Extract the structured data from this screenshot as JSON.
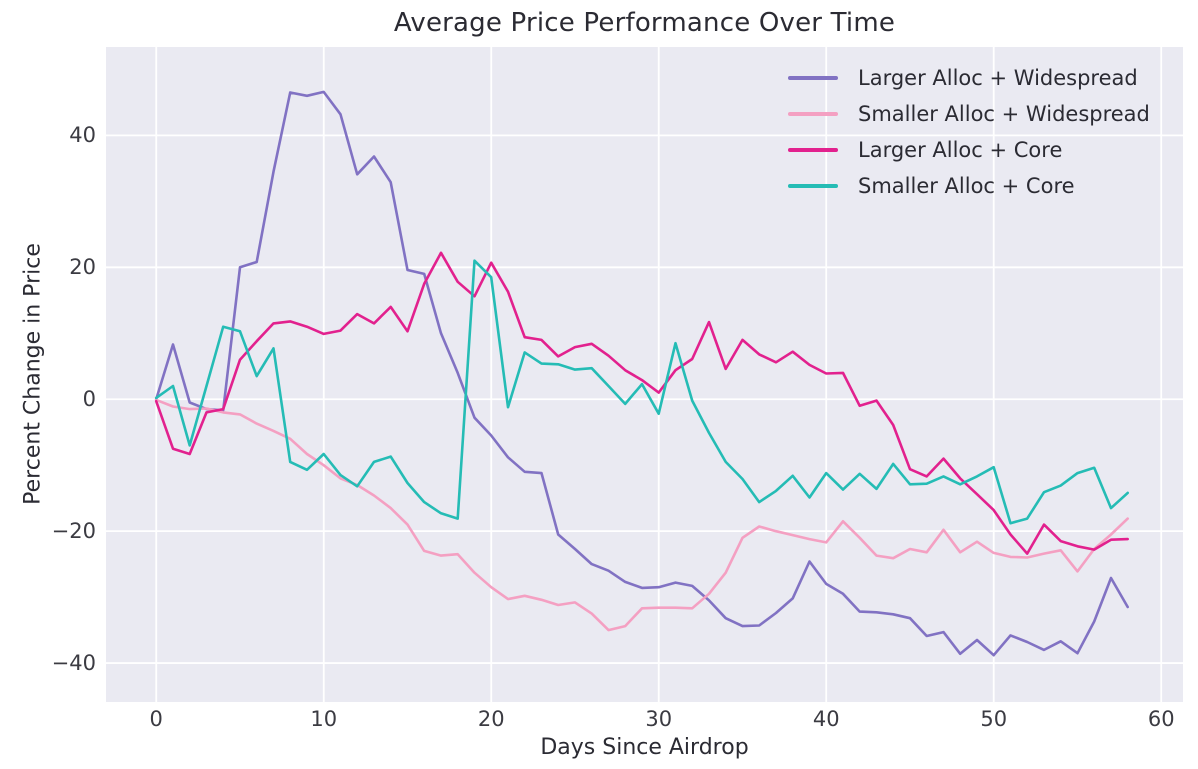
{
  "title": "Average Price Performance Over Time",
  "colors": {
    "figure_bg": "#ffffff",
    "plot_bg": "#eaeaf2",
    "gridline": "#ffffff",
    "text": "#2b2b33",
    "tick_text": "#3b3b42"
  },
  "chart_data": {
    "type": "line",
    "title": "Average Price Performance Over Time",
    "xlabel": "Days Since Airdrop",
    "ylabel": "Percent Change in Price",
    "grid": true,
    "legend_position": "upper right",
    "xlim": [
      -3,
      61.3
    ],
    "ylim": [
      -45.9,
      53.4
    ],
    "x_ticks": [
      0,
      10,
      20,
      30,
      40,
      50,
      60
    ],
    "y_ticks": [
      -40,
      -20,
      0,
      20,
      40
    ],
    "x": [
      0,
      1,
      2,
      3,
      4,
      5,
      6,
      7,
      8,
      9,
      10,
      11,
      12,
      13,
      14,
      15,
      16,
      17,
      18,
      19,
      20,
      21,
      22,
      23,
      24,
      25,
      26,
      27,
      28,
      29,
      30,
      31,
      32,
      33,
      34,
      35,
      36,
      37,
      38,
      39,
      40,
      41,
      42,
      43,
      44,
      45,
      46,
      47,
      48,
      49,
      50,
      51,
      52,
      53,
      54,
      55,
      56,
      57,
      58
    ],
    "series": [
      {
        "name": "Larger Alloc + Widespread",
        "color": "#8172c3",
        "values": [
          0,
          8.3,
          -0.5,
          -1.5,
          -1.7,
          20,
          20.8,
          34.5,
          46.5,
          46,
          46.6,
          43.2,
          34.1,
          36.8,
          32.9,
          19.6,
          19,
          10,
          4,
          -2.8,
          -5.5,
          -8.8,
          -11,
          -11.2,
          -20.5,
          -22.7,
          -25,
          -26,
          -27.7,
          -28.6,
          -28.5,
          -27.8,
          -28.3,
          -30.5,
          -33.2,
          -34.4,
          -34.3,
          -32.4,
          -30.2,
          -24.6,
          -28,
          -29.5,
          -32.2,
          -32.3,
          -32.6,
          -33.2,
          -35.9,
          -35.3,
          -38.6,
          -36.5,
          -38.8,
          -35.8,
          -36.8,
          -38,
          -36.7,
          -38.5,
          -33.7,
          -27.1,
          -31.5
        ]
      },
      {
        "name": "Smaller Alloc + Widespread",
        "color": "#f4a0c2",
        "values": [
          -0.1,
          -1.1,
          -1.5,
          -1.4,
          -2,
          -2.3,
          -3.7,
          -4.8,
          -6,
          -8.3,
          -10,
          -12,
          -13,
          -14.6,
          -16.5,
          -19,
          -23,
          -23.7,
          -23.5,
          -26.3,
          -28.5,
          -30.3,
          -29.8,
          -30.4,
          -31.2,
          -30.8,
          -32.5,
          -35,
          -34.4,
          -31.7,
          -31.6,
          -31.6,
          -31.7,
          -29.5,
          -26.3,
          -21,
          -19.3,
          -20,
          -20.6,
          -21.2,
          -21.7,
          -18.5,
          -21,
          -23.7,
          -24.1,
          -22.7,
          -23.2,
          -19.8,
          -23.2,
          -21.6,
          -23.3,
          -23.9,
          -24,
          -23.4,
          -22.9,
          -26.1,
          -22.7,
          -20.5,
          -18.1
        ]
      },
      {
        "name": "Larger Alloc + Core",
        "color": "#e2218e",
        "values": [
          -0.3,
          -7.5,
          -8.3,
          -2,
          -1.5,
          6,
          8.8,
          11.5,
          11.8,
          11,
          9.9,
          10.4,
          12.9,
          11.5,
          14,
          10.3,
          17.5,
          22.2,
          17.8,
          15.6,
          20.7,
          16.3,
          9.4,
          9,
          6.5,
          7.9,
          8.4,
          6.6,
          4.4,
          2.9,
          1,
          4.4,
          6.1,
          11.7,
          4.6,
          9,
          6.8,
          5.6,
          7.2,
          5.2,
          3.9,
          4,
          -1,
          -0.2,
          -3.9,
          -10.6,
          -11.7,
          -9,
          -12,
          -14.4,
          -16.8,
          -20.5,
          -23.4,
          -19,
          -21.5,
          -22.3,
          -22.8,
          -21.3,
          -21.2
        ]
      },
      {
        "name": "Smaller Alloc + Core",
        "color": "#25bcb5",
        "values": [
          0.2,
          2,
          -7,
          2,
          11,
          10.3,
          3.5,
          7.7,
          -9.5,
          -10.7,
          -8.3,
          -11.5,
          -13.2,
          -9.5,
          -8.7,
          -12.7,
          -15.6,
          -17.3,
          -18.1,
          21,
          18.5,
          -1.2,
          7.1,
          5.4,
          5.3,
          4.5,
          4.7,
          2,
          -0.7,
          2.3,
          -2.2,
          8.5,
          -0.2,
          -5.1,
          -9.5,
          -12.1,
          -15.6,
          -13.9,
          -11.6,
          -14.9,
          -11.2,
          -13.7,
          -11.3,
          -13.6,
          -9.8,
          -12.9,
          -12.8,
          -11.7,
          -12.9,
          -11.7,
          -10.3,
          -18.8,
          -18.1,
          -14.1,
          -13.1,
          -11.2,
          -10.4,
          -16.5,
          -14.2
        ]
      }
    ]
  }
}
